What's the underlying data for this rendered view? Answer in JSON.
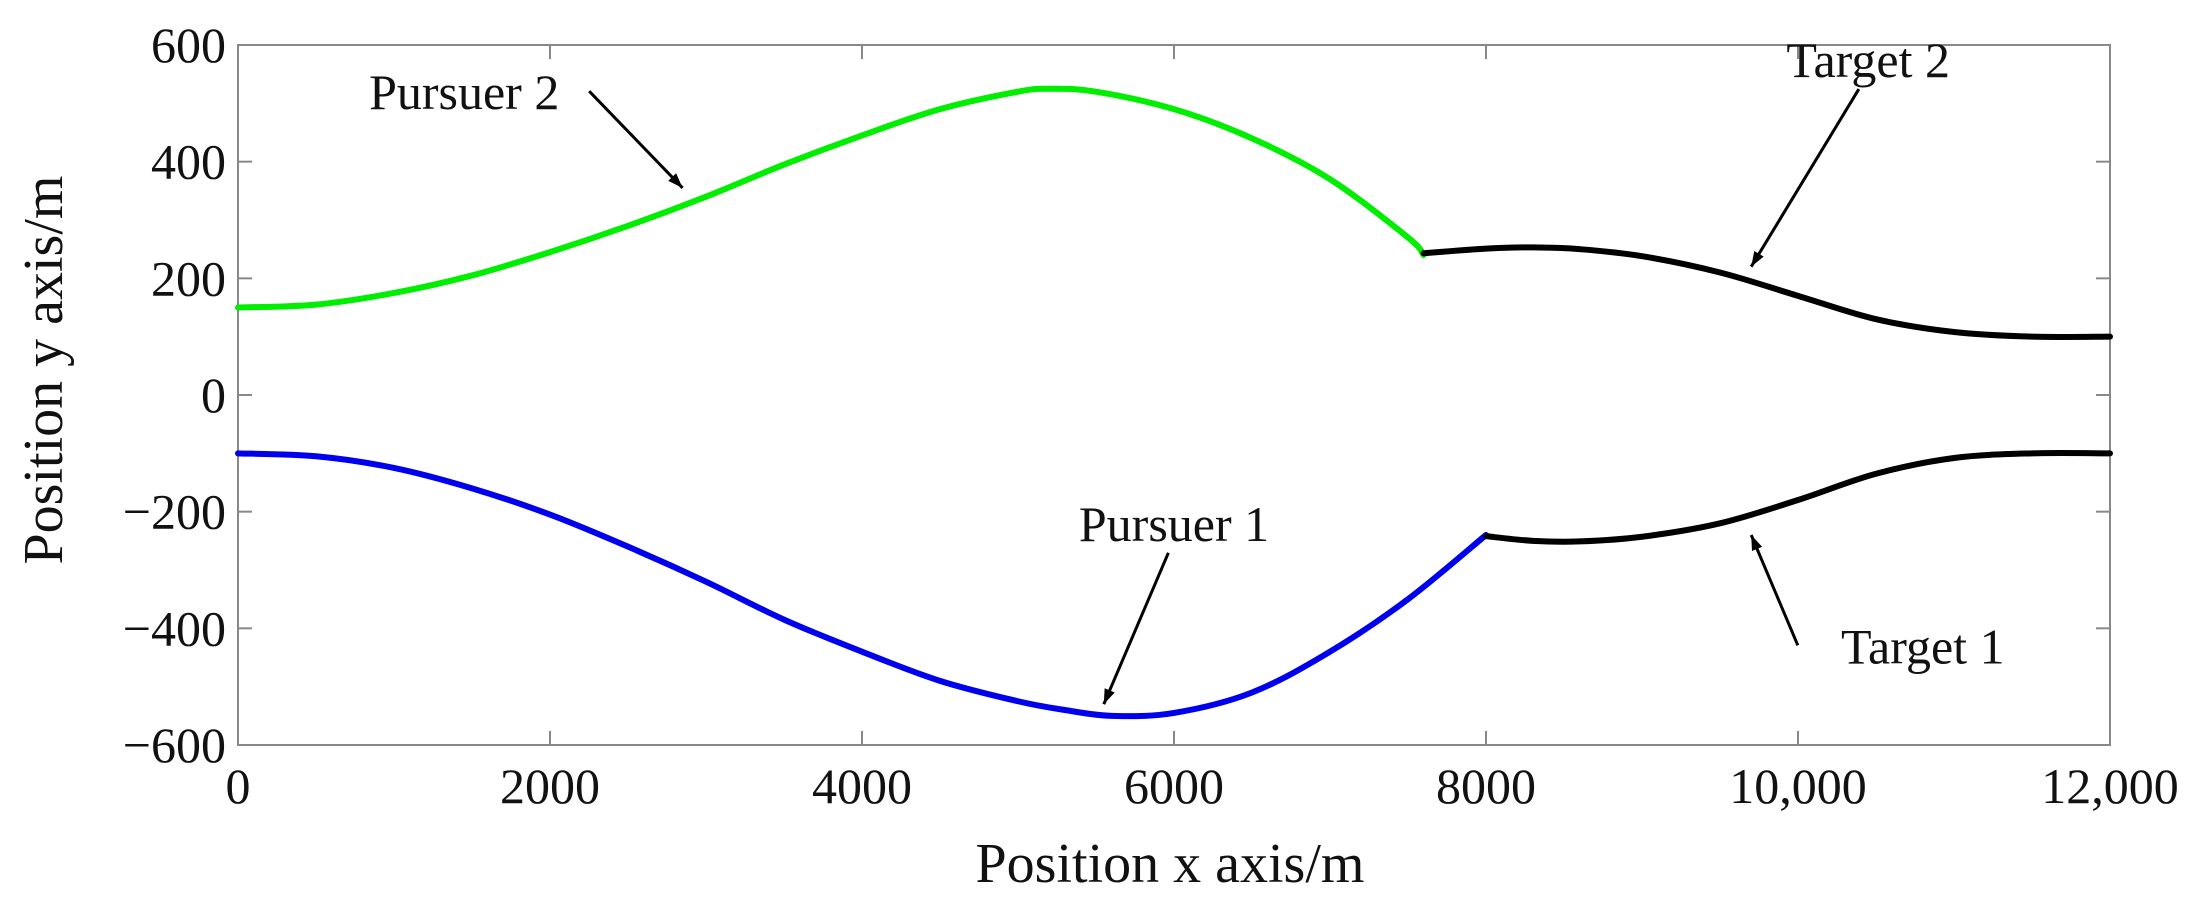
{
  "chart_data": {
    "type": "line",
    "title": "",
    "xlabel": "Position x axis/m",
    "ylabel": "Position y axis/m",
    "xlim": [
      0,
      12000
    ],
    "ylim": [
      -600,
      600
    ],
    "x_ticks": [
      0,
      2000,
      4000,
      6000,
      8000,
      10000,
      12000
    ],
    "x_tick_labels": [
      "0",
      "2000",
      "4000",
      "6000",
      "8000",
      "10,000",
      "12,000"
    ],
    "y_ticks": [
      -600,
      -400,
      -200,
      0,
      200,
      400,
      600
    ],
    "y_tick_labels": [
      "−600",
      "−400",
      "−200",
      "0",
      "200",
      "400",
      "600"
    ],
    "grid": false,
    "legend": "none",
    "series": [
      {
        "name": "Pursuer 2",
        "color": "#00ee00",
        "x": [
          0,
          500,
          1000,
          1500,
          2000,
          2500,
          3000,
          3500,
          4000,
          4500,
          5000,
          5200,
          5500,
          6000,
          6500,
          7000,
          7500,
          7600
        ],
        "y": [
          150,
          155,
          175,
          205,
          245,
          290,
          340,
          395,
          445,
          490,
          520,
          525,
          520,
          490,
          440,
          370,
          270,
          240
        ]
      },
      {
        "name": "Target 2",
        "color": "#000000",
        "x": [
          7600,
          8000,
          8300,
          8600,
          9000,
          9500,
          10000,
          10500,
          11000,
          11500,
          12000
        ],
        "y": [
          243,
          251,
          253,
          250,
          238,
          210,
          170,
          130,
          108,
          100,
          100
        ]
      },
      {
        "name": "Pursuer 1",
        "color": "#0000ee",
        "x": [
          0,
          500,
          1000,
          1500,
          2000,
          2500,
          3000,
          3500,
          4000,
          4500,
          5000,
          5300,
          5600,
          6000,
          6500,
          7000,
          7500,
          8000
        ],
        "y": [
          -100,
          -105,
          -125,
          -160,
          -205,
          -260,
          -320,
          -385,
          -440,
          -490,
          -525,
          -540,
          -550,
          -545,
          -510,
          -440,
          -350,
          -240
        ]
      },
      {
        "name": "Target 1",
        "color": "#000000",
        "x": [
          8000,
          8300,
          8600,
          9000,
          9500,
          10000,
          10500,
          11000,
          11500,
          12000
        ],
        "y": [
          -242,
          -250,
          -251,
          -243,
          -220,
          -180,
          -135,
          -108,
          -100,
          -100
        ]
      }
    ],
    "annotations": [
      {
        "text": "Pursuer 2",
        "text_x": 1450,
        "text_y": 490,
        "arrow_to": [
          2850,
          355
        ]
      },
      {
        "text": "Target 2",
        "text_x": 10450,
        "text_y": 545,
        "arrow_to": [
          9700,
          220
        ]
      },
      {
        "text": "Pursuer 1",
        "text_x": 6000,
        "text_y": -250,
        "arrow_to": [
          5550,
          -530
        ]
      },
      {
        "text": "Target 1",
        "text_x": 10800,
        "text_y": -460,
        "arrow_to": [
          9700,
          -240
        ]
      }
    ]
  }
}
